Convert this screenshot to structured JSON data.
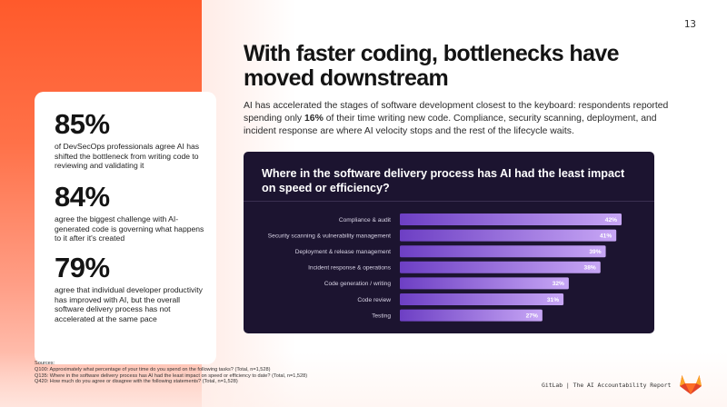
{
  "page_number": "13",
  "title": "With faster coding, bottlenecks have moved downstream",
  "body": {
    "part1": "AI has accelerated the stages of software development closest to the keyboard: respondents reported spending only ",
    "highlight": "16%",
    "part2": " of their time writing new code. Compliance, security scanning, deployment, and incident response are where AI velocity stops and the rest of the lifecycle waits."
  },
  "stats": [
    {
      "value": "85%",
      "text": "of DevSecOps professionals agree AI has shifted the bottleneck from writing code to reviewing and validating it"
    },
    {
      "value": "84%",
      "text": "agree the biggest challenge with AI-generated code is governing what happens to it after it's created"
    },
    {
      "value": "79%",
      "text": "agree that individual developer productivity has improved with AI, but the overall software delivery process has not accelerated at the same pace"
    }
  ],
  "chart_data": {
    "type": "bar",
    "orientation": "horizontal",
    "title": "Where in the software delivery process has AI had the least impact on speed or efficiency?",
    "categories": [
      "Compliance & audit",
      "Security scanning & vulnerability management",
      "Deployment & release management",
      "Incident response & operations",
      "Code generation / writing",
      "Code review",
      "Testing"
    ],
    "values": [
      42,
      41,
      39,
      38,
      32,
      31,
      27
    ],
    "value_labels": [
      "42%",
      "41%",
      "39%",
      "38%",
      "32%",
      "31%",
      "27%"
    ],
    "xlim": [
      0,
      42
    ],
    "bar_color_start": "#6d3fc4",
    "bar_color_end": "#c7a6f5",
    "background": "#1c1430"
  },
  "sources": {
    "heading": "Sources:",
    "lines": [
      "Q100: Approximately what percentage of your time do you spend on the following tasks? (Total, n=1,528)",
      "Q135: Where in the software delivery process has AI had the least impact on speed or efficiency to date? (Total, n=1,528)",
      "Q420: How much do you agree or disagree with the following statements? (Total, n=1,528)"
    ]
  },
  "footer": {
    "brand": "GitLab | The AI Accountability Report",
    "logo_icon": "gitlab-tanuki-icon"
  },
  "colors": {
    "accent_orange": "#ff5a2b",
    "panel_dark": "#1c1430",
    "bar_purple": "#a97ff0"
  }
}
